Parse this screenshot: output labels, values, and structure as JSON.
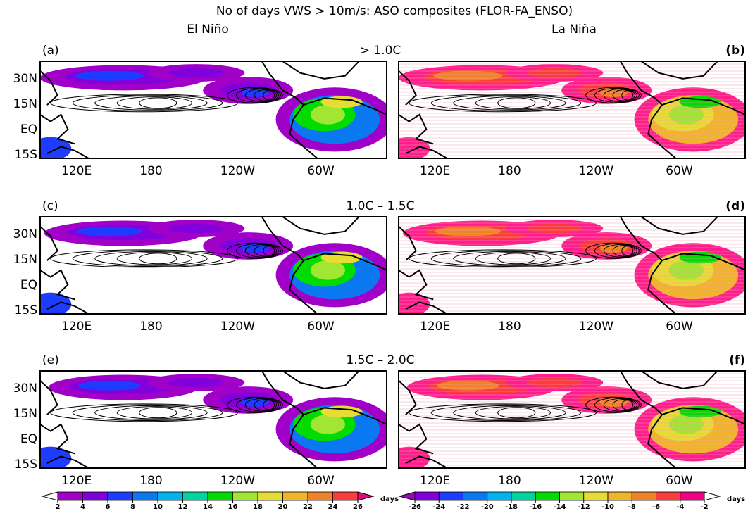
{
  "title": "No of days VWS > 10m/s: ASO composites (FLOR-FA_ENSO)",
  "columns": [
    "El Niño",
    "La Niña"
  ],
  "rows": [
    {
      "left_label": "(a)",
      "center_label": "> 1.0C",
      "right_label": "(b)"
    },
    {
      "left_label": "(c)",
      "center_label": "1.0C – 1.5C",
      "right_label": "(d)"
    },
    {
      "left_label": "(e)",
      "center_label": "1.5C – 2.0C",
      "right_label": "(f)"
    }
  ],
  "lat_labels": [
    "30N",
    "15N",
    "EQ",
    "15S"
  ],
  "lon_labels": [
    "120E",
    "180",
    "120W",
    "60W"
  ],
  "colorbars": [
    {
      "ticks": [
        2,
        4,
        6,
        8,
        10,
        12,
        14,
        16,
        18,
        20,
        22,
        24,
        26
      ],
      "unit": "days",
      "colors": [
        "#ffffff",
        "#a000c8",
        "#8200dc",
        "#1e3cff",
        "#0a78f0",
        "#00b4f0",
        "#00d2a0",
        "#00dc00",
        "#a0e632",
        "#e6dc32",
        "#f0b428",
        "#f08228",
        "#fa3c3c",
        "#f00082"
      ]
    },
    {
      "ticks": [
        -26,
        -24,
        -22,
        -20,
        -18,
        -16,
        -14,
        -12,
        -10,
        -8,
        -6,
        -4,
        -2
      ],
      "unit": "days",
      "colors": [
        "#a000c8",
        "#8200dc",
        "#1e3cff",
        "#0a78f0",
        "#00b4f0",
        "#00d2a0",
        "#00dc00",
        "#a0e632",
        "#e6dc32",
        "#f0b428",
        "#f08228",
        "#fa3c3c",
        "#f00082",
        "#ffffff"
      ]
    }
  ]
}
